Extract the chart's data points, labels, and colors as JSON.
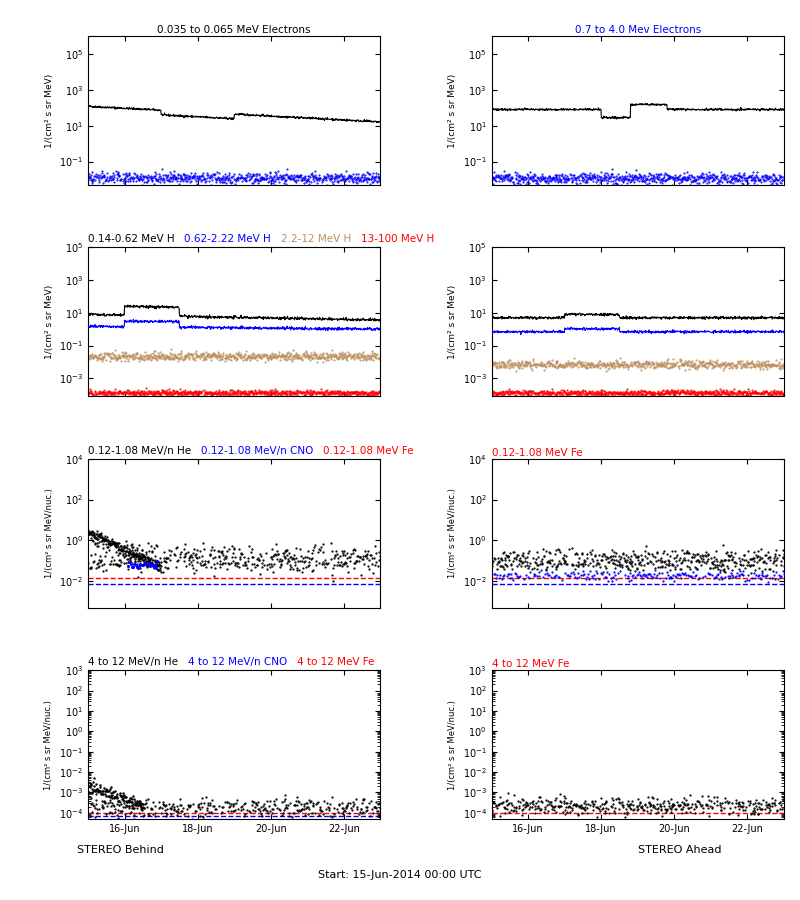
{
  "title_r0_l": "0.035 to 0.065 MeV Electrons",
  "title_r0_r": "0.7 to 4.0 Mev Electrons",
  "title_r1_parts": [
    [
      "0.14-0.62 MeV H   ",
      "black"
    ],
    [
      "0.62-2.22 MeV H   ",
      "blue"
    ],
    [
      "2.2-12 MeV H   ",
      "#bc8f5f"
    ],
    [
      "13-100 MeV H",
      "red"
    ]
  ],
  "title_r2_parts": [
    [
      "0.12-1.08 MeV/n He   ",
      "black"
    ],
    [
      "0.12-1.08 MeV/n CNO   ",
      "blue"
    ],
    [
      "0.12-1.08 MeV Fe",
      "red"
    ]
  ],
  "title_r2_r": "0.12-1.08 MeV Fe",
  "title_r3_parts": [
    [
      "4 to 12 MeV/n He   ",
      "black"
    ],
    [
      "4 to 12 MeV/n CNO   ",
      "blue"
    ],
    [
      "4 to 12 MeV Fe",
      "red"
    ]
  ],
  "title_r3_r": "4 to 12 MeV Fe",
  "xlabel_center": "Start: 15-Jun-2014 00:00 UTC",
  "xlabel_left": "STEREO Behind",
  "xlabel_right": "STEREO Ahead",
  "xtick_labels": [
    "16-Jun",
    "18-Jun",
    "20-Jun",
    "22-Jun"
  ],
  "ylabel_e": "1/(cm² s sr MeV)",
  "ylabel_h": "1/(cm² s sr MeV)",
  "ylabel_low": "1/(cm² s sr MeV/nuc.)",
  "ylabel_high": "1/(cm² s sr MeV/nuc.)"
}
